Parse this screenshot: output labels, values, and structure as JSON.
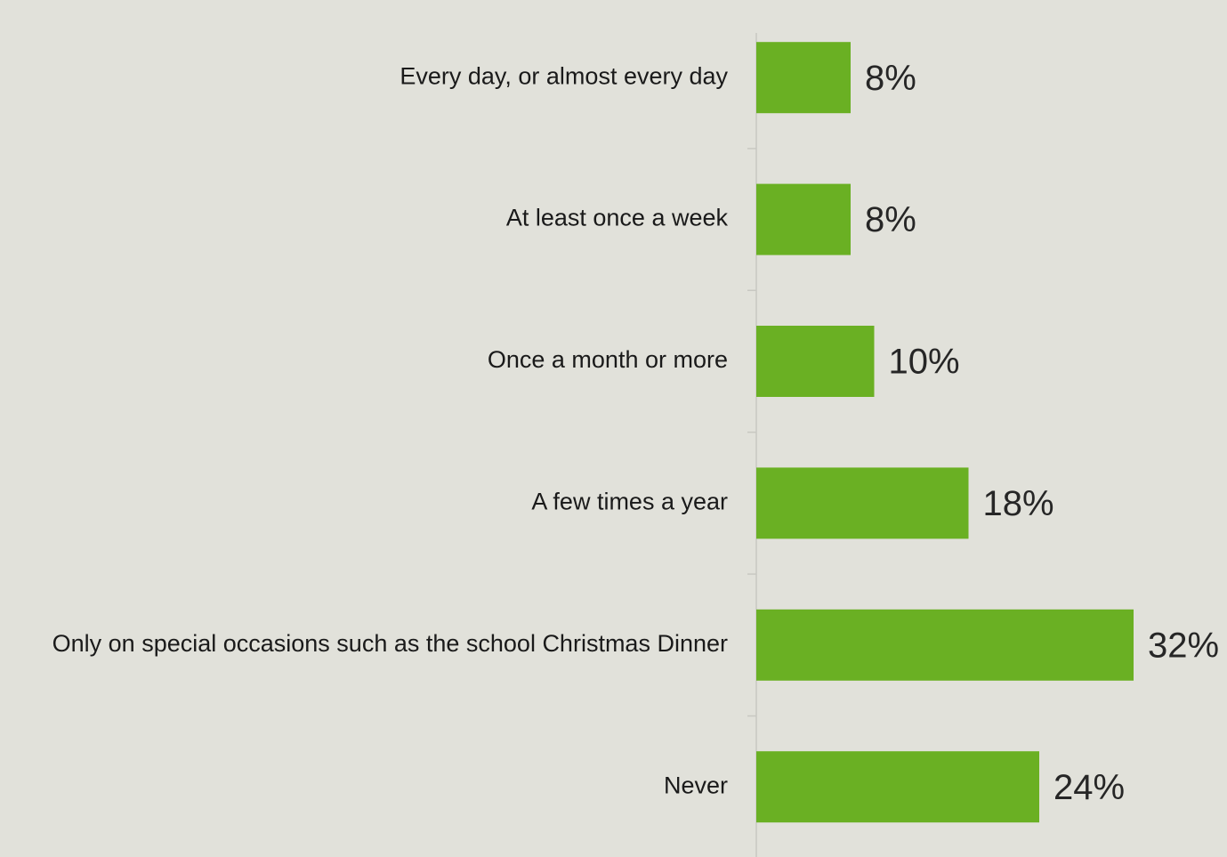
{
  "chart_data": {
    "type": "bar",
    "orientation": "horizontal",
    "categories": [
      "Every day, or almost every day",
      "At least once a week",
      "Once a month or more",
      "A few times a year",
      "Only on special occasions such as the school Christmas Dinner",
      "Never"
    ],
    "values": [
      8,
      8,
      10,
      18,
      32,
      24
    ],
    "value_labels": [
      "8%",
      "8%",
      "10%",
      "18%",
      "32%",
      "24%"
    ],
    "color": "#6ab023"
  }
}
